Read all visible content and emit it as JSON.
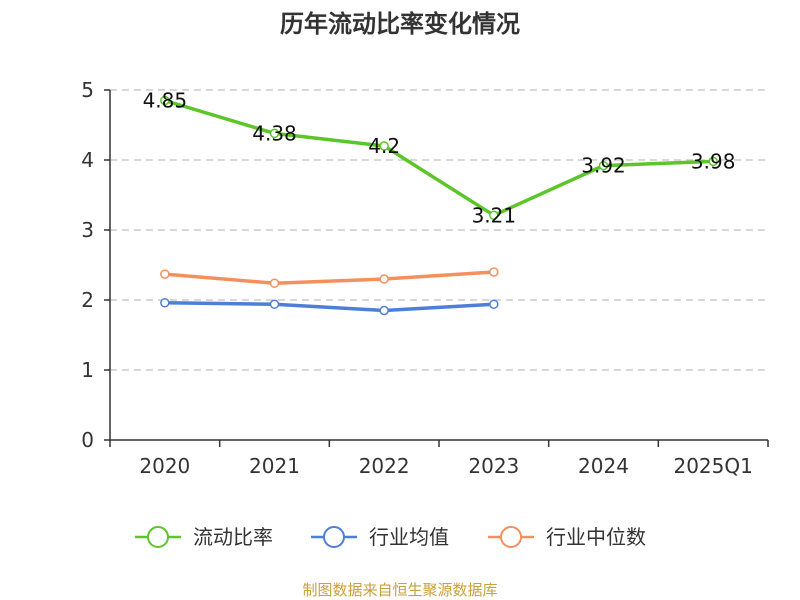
{
  "chart_data": {
    "type": "line",
    "title": "历年流动比率变化情况",
    "categories": [
      "2020",
      "2021",
      "2022",
      "2023",
      "2024",
      "2025Q1"
    ],
    "ylim": [
      0,
      5
    ],
    "yticks": [
      "0",
      "1",
      "2",
      "3",
      "4",
      "5"
    ],
    "grid": true,
    "legend_position": "bottom",
    "series": [
      {
        "name": "流动比率",
        "color": "#5cc52a",
        "values": [
          4.85,
          4.38,
          4.2,
          3.21,
          3.92,
          3.98
        ],
        "labels": [
          "4.85",
          "4.38",
          "4.2",
          "3.21",
          "3.92",
          "3.98"
        ],
        "show_labels": true
      },
      {
        "name": "行业均值",
        "color": "#4d7fd8",
        "values": [
          1.96,
          1.94,
          1.85,
          1.94,
          null,
          null
        ],
        "show_labels": false
      },
      {
        "name": "行业中位数",
        "color": "#f4905e",
        "values": [
          2.37,
          2.24,
          2.3,
          2.4,
          null,
          null
        ],
        "show_labels": false
      }
    ]
  },
  "source_note": {
    "text": "制图数据来自恒生聚源数据库",
    "color": "#c9a13a"
  }
}
